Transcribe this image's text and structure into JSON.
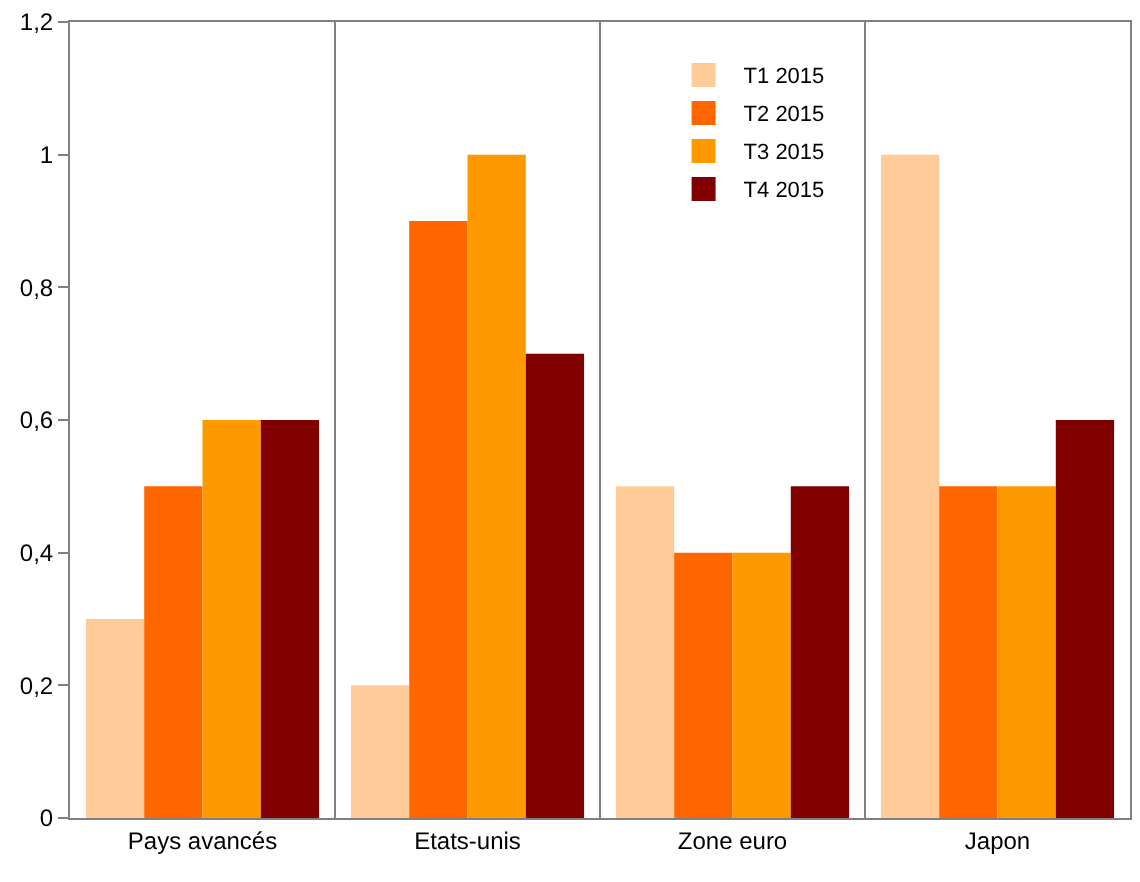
{
  "chart_data": {
    "type": "bar",
    "categories": [
      "Pays avancés",
      "Etats-unis",
      "Zone euro",
      "Japon"
    ],
    "series": [
      {
        "name": "T1 2015",
        "color": "#ffcc99",
        "values": [
          0.3,
          0.2,
          0.5,
          1.0
        ]
      },
      {
        "name": "T2 2015",
        "color": "#ff6600",
        "values": [
          0.5,
          0.9,
          0.4,
          0.5
        ]
      },
      {
        "name": "T3 2015",
        "color": "#ff9900",
        "values": [
          0.6,
          1.0,
          0.4,
          0.5
        ]
      },
      {
        "name": "T4 2015",
        "color": "#800000",
        "values": [
          0.6,
          0.7,
          0.5,
          0.6
        ]
      }
    ],
    "ylim": [
      0,
      1.2
    ],
    "yticks": [
      0,
      {
        "value": 0.2,
        "label": "0,2"
      },
      {
        "value": 0.4,
        "label": "0,4"
      },
      {
        "value": 0.6,
        "label": "0,6"
      },
      {
        "value": 0.8,
        "label": "0,8"
      },
      1,
      {
        "value": 1.2,
        "label": "1,2"
      }
    ],
    "grid": "x",
    "legend": "top right"
  }
}
